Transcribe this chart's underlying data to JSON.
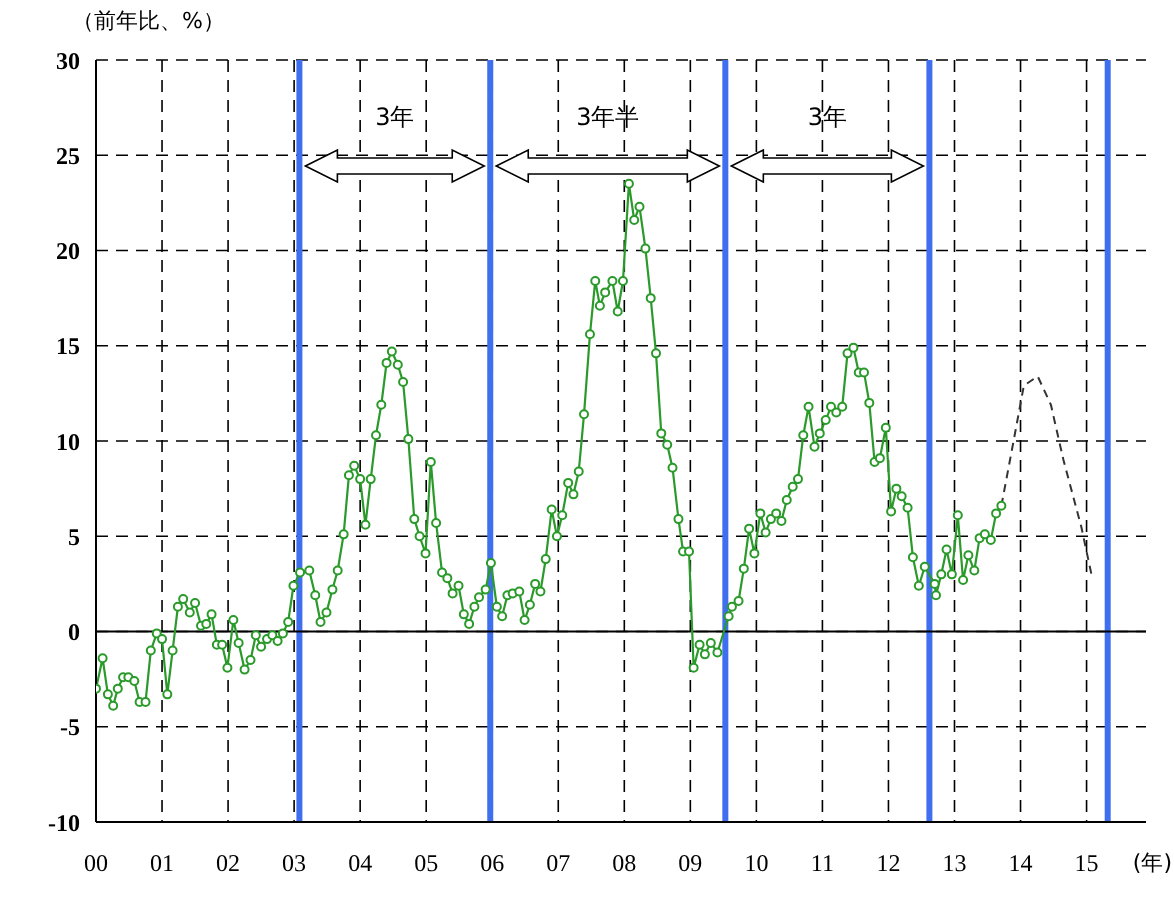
{
  "chart_data": {
    "type": "line",
    "ylabel": "（前年比、%）",
    "xlabel": "(年)",
    "xlim": [
      0,
      15.9
    ],
    "xticks": [
      {
        "value": 0,
        "label": "00"
      },
      {
        "value": 1,
        "label": "01"
      },
      {
        "value": 2,
        "label": "02"
      },
      {
        "value": 3,
        "label": "03"
      },
      {
        "value": 4,
        "label": "04"
      },
      {
        "value": 5,
        "label": "05"
      },
      {
        "value": 6,
        "label": "06"
      },
      {
        "value": 7,
        "label": "07"
      },
      {
        "value": 8,
        "label": "08"
      },
      {
        "value": 9,
        "label": "09"
      },
      {
        "value": 10,
        "label": "10"
      },
      {
        "value": 11,
        "label": "11"
      },
      {
        "value": 12,
        "label": "12"
      },
      {
        "value": 13,
        "label": "13"
      },
      {
        "value": 14,
        "label": "14"
      },
      {
        "value": 15,
        "label": "15"
      }
    ],
    "ylim": [
      -10,
      30
    ],
    "yticks": [
      -10,
      -5,
      0,
      5,
      10,
      15,
      20,
      25,
      30
    ],
    "grid": true,
    "series": [
      {
        "color": "#2a9a2a",
        "marker": "circle",
        "line_style": "solid",
        "x": [
          0.0,
          0.1,
          0.18,
          0.26,
          0.33,
          0.41,
          0.49,
          0.58,
          0.66,
          0.75,
          0.83,
          0.92,
          1.0,
          1.08,
          1.16,
          1.24,
          1.32,
          1.42,
          1.5,
          1.59,
          1.67,
          1.75,
          1.83,
          1.91,
          1.99,
          2.08,
          2.16,
          2.25,
          2.34,
          2.42,
          2.5,
          2.59,
          2.67,
          2.75,
          2.83,
          2.91,
          2.99,
          3.09,
          3.23,
          3.32,
          3.4,
          3.49,
          3.58,
          3.66,
          3.75,
          3.83,
          3.91,
          4.0,
          4.08,
          4.16,
          4.24,
          4.32,
          4.4,
          4.48,
          4.57,
          4.65,
          4.73,
          4.82,
          4.9,
          4.99,
          5.07,
          5.15,
          5.24,
          5.32,
          5.4,
          5.49,
          5.57,
          5.65,
          5.73,
          5.8,
          5.9,
          5.98,
          6.07,
          6.15,
          6.23,
          6.31,
          6.41,
          6.49,
          6.57,
          6.65,
          6.73,
          6.81,
          6.9,
          6.98,
          7.06,
          7.15,
          7.23,
          7.31,
          7.39,
          7.48,
          7.56,
          7.63,
          7.71,
          7.82,
          7.9,
          7.98,
          8.07,
          8.15,
          8.23,
          8.32,
          8.4,
          8.48,
          8.56,
          8.65,
          8.73,
          8.82,
          8.89,
          8.98,
          9.05,
          9.14,
          9.22,
          9.31,
          9.41,
          9.58,
          9.63,
          9.73,
          9.81,
          9.89,
          9.97,
          10.06,
          10.14,
          10.22,
          10.3,
          10.38,
          10.46,
          10.55,
          10.63,
          10.71,
          10.79,
          10.88,
          10.96,
          11.05,
          11.13,
          11.21,
          11.3,
          11.38,
          11.47,
          11.55,
          11.63,
          11.71,
          11.79,
          11.87,
          11.96,
          12.04,
          12.12,
          12.2,
          12.29,
          12.37,
          12.46,
          12.55,
          12.7,
          12.72,
          12.8,
          12.88,
          12.96,
          13.05,
          13.13,
          13.21,
          13.3,
          13.38,
          13.46,
          13.55,
          13.63,
          13.71
        ],
        "values": [
          -3.0,
          -1.4,
          -3.3,
          -3.9,
          -3.0,
          -2.4,
          -2.4,
          -2.6,
          -3.7,
          -3.7,
          -1.0,
          -0.1,
          -0.4,
          -3.3,
          -1.0,
          1.3,
          1.7,
          1.0,
          1.5,
          0.3,
          0.4,
          0.9,
          -0.7,
          -0.7,
          -1.9,
          0.6,
          -0.6,
          -2.0,
          -1.5,
          -0.2,
          -0.8,
          -0.4,
          -0.2,
          -0.5,
          -0.1,
          0.5,
          2.4,
          3.1,
          3.2,
          1.9,
          0.5,
          1.0,
          2.2,
          3.2,
          5.1,
          8.2,
          8.7,
          8.0,
          5.6,
          8.0,
          10.3,
          11.9,
          14.1,
          14.7,
          14.0,
          13.1,
          10.1,
          5.9,
          5.0,
          4.1,
          8.9,
          5.7,
          3.1,
          2.8,
          2.0,
          2.4,
          0.9,
          0.4,
          1.3,
          1.8,
          2.2,
          3.6,
          1.3,
          0.8,
          1.9,
          2.0,
          2.1,
          0.6,
          1.4,
          2.5,
          2.1,
          3.8,
          6.4,
          5.0,
          6.1,
          7.8,
          7.2,
          8.4,
          11.4,
          15.6,
          18.4,
          17.1,
          17.8,
          18.4,
          16.8,
          18.4,
          23.5,
          21.6,
          22.3,
          20.1,
          17.5,
          14.6,
          10.4,
          9.8,
          8.6,
          5.9,
          4.2,
          4.2,
          -1.9,
          -0.7,
          -1.2,
          -0.6,
          -1.1,
          0.8,
          1.3,
          1.6,
          3.3,
          5.4,
          4.1,
          6.2,
          5.2,
          5.9,
          6.2,
          5.8,
          6.9,
          7.6,
          8.0,
          10.3,
          11.8,
          9.7,
          10.4,
          11.1,
          11.8,
          11.5,
          11.8,
          14.6,
          14.9,
          13.6,
          13.6,
          12.0,
          8.9,
          9.1,
          10.7,
          6.3,
          7.5,
          7.1,
          6.5,
          3.9,
          2.4,
          3.4,
          2.5,
          1.9,
          3.0,
          4.3,
          3.0,
          6.1,
          2.7,
          4.0,
          3.2,
          4.9,
          5.1,
          4.8,
          6.2,
          6.6
        ]
      },
      {
        "color": "#333333",
        "marker": "none",
        "line_style": "dashed",
        "x": [
          13.71,
          13.9,
          14.05,
          14.26,
          14.46,
          14.65,
          14.92,
          15.08
        ],
        "values": [
          6.6,
          10.1,
          12.9,
          13.4,
          11.9,
          9.0,
          5.5,
          2.9
        ]
      }
    ],
    "ref_lines": [
      {
        "axis": "x",
        "value": 3.08,
        "color": "#3f6fef"
      },
      {
        "axis": "x",
        "value": 5.97,
        "color": "#3f6fef"
      },
      {
        "axis": "x",
        "value": 9.53,
        "color": "#3f6fef"
      },
      {
        "axis": "x",
        "value": 12.62,
        "color": "#3f6fef"
      },
      {
        "axis": "x",
        "value": 15.32,
        "color": "#3f6fef"
      },
      {
        "axis": "y",
        "value": 0,
        "color": "#000000"
      }
    ],
    "annotations": [
      "3年",
      "3年半",
      "3年"
    ]
  }
}
